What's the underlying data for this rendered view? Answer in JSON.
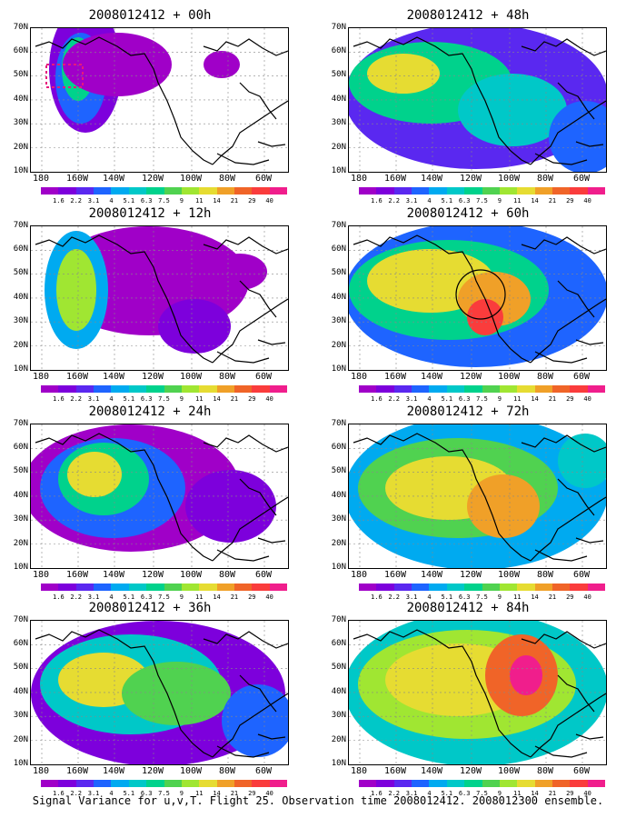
{
  "caption": "Signal Variance for u,v,T. Flight 25. Observation time 2008012412. 2008012300 ensemble.",
  "lat_labels": [
    "70N",
    "60N",
    "50N",
    "40N",
    "30N",
    "20N",
    "10N"
  ],
  "lon_labels": [
    "180",
    "160W",
    "140W",
    "120W",
    "100W",
    "80W",
    "60W"
  ],
  "colorbar": {
    "labels": [
      "1.6",
      "2.2",
      "3.1",
      "4",
      "5.1",
      "6.3",
      "7.5",
      "9",
      "11",
      "14",
      "21",
      "29",
      "40"
    ],
    "colors": [
      "#a000c8",
      "#7d00dc",
      "#5a28f0",
      "#1e64ff",
      "#00aaf0",
      "#00c8c8",
      "#00d28c",
      "#50d250",
      "#a0e632",
      "#e6dc32",
      "#f0a028",
      "#f06428",
      "#fa3c3c",
      "#f01e8c"
    ]
  },
  "panels": [
    {
      "title": "2008012412 + 00h",
      "dashed_box": true,
      "circle": false
    },
    {
      "title": "2008012412 + 12h",
      "dashed_box": false,
      "circle": false
    },
    {
      "title": "2008012412 + 24h",
      "dashed_box": false,
      "circle": false
    },
    {
      "title": "2008012412 + 36h",
      "dashed_box": false,
      "circle": false
    },
    {
      "title": "2008012412 + 48h",
      "dashed_box": false,
      "circle": false
    },
    {
      "title": "2008012412 + 60h",
      "dashed_box": false,
      "circle": true
    },
    {
      "title": "2008012412 + 72h",
      "dashed_box": false,
      "circle": false
    },
    {
      "title": "2008012412 + 84h",
      "dashed_box": false,
      "circle": false
    }
  ]
}
